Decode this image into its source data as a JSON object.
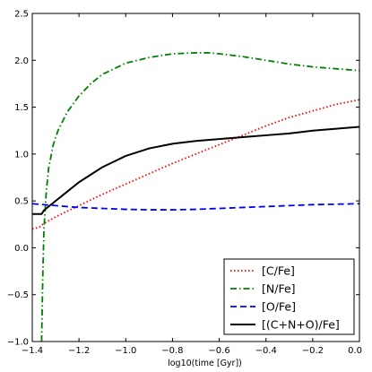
{
  "chart_data": {
    "type": "line",
    "xlabel": "log10(time [Gyr])",
    "ylabel": "",
    "xlim": [
      -1.4,
      0.0
    ],
    "ylim": [
      -1.0,
      2.5
    ],
    "xticks": [
      -1.4,
      -1.2,
      -1.0,
      -0.8,
      -0.6,
      -0.4,
      -0.2,
      0.0
    ],
    "xtick_labels": [
      "−1.4",
      "−1.2",
      "−1.0",
      "−0.8",
      "−0.6",
      "−0.4",
      "−0.2",
      "0.0"
    ],
    "yticks": [
      -1.0,
      -0.5,
      0.0,
      0.5,
      1.0,
      1.5,
      2.0,
      2.5
    ],
    "ytick_labels": [
      "−1.0",
      "−0.5",
      "0.0",
      "0.5",
      "1.0",
      "1.5",
      "2.0",
      "2.5"
    ],
    "grid": false,
    "legend_position": "bottom-right",
    "series": [
      {
        "name": "[C/Fe]",
        "color": "#ff0000",
        "style": "dotted",
        "x": [
          -1.4,
          -1.37,
          -1.35,
          -1.3,
          -1.2,
          -1.1,
          -1.0,
          -0.9,
          -0.8,
          -0.7,
          -0.6,
          -0.5,
          -0.4,
          -0.3,
          -0.2,
          -0.1,
          0.0
        ],
        "y": [
          0.2,
          0.22,
          0.26,
          0.33,
          0.45,
          0.57,
          0.68,
          0.79,
          0.9,
          1.0,
          1.1,
          1.2,
          1.3,
          1.39,
          1.46,
          1.53,
          1.58
        ]
      },
      {
        "name": "[N/Fe]",
        "color": "#008000",
        "style": "dashdot",
        "x": [
          -1.36,
          -1.355,
          -1.35,
          -1.34,
          -1.33,
          -1.31,
          -1.29,
          -1.25,
          -1.2,
          -1.15,
          -1.1,
          -1.0,
          -0.9,
          -0.8,
          -0.7,
          -0.65,
          -0.6,
          -0.5,
          -0.4,
          -0.3,
          -0.2,
          -0.1,
          0.0
        ],
        "y": [
          -1.0,
          -0.3,
          0.2,
          0.6,
          0.85,
          1.1,
          1.25,
          1.45,
          1.62,
          1.75,
          1.85,
          1.97,
          2.03,
          2.07,
          2.08,
          2.08,
          2.07,
          2.04,
          2.0,
          1.96,
          1.93,
          1.91,
          1.89
        ]
      },
      {
        "name": "[O/Fe]",
        "color": "#0000ff",
        "style": "dashed",
        "x": [
          -1.4,
          -1.3,
          -1.2,
          -1.1,
          -1.0,
          -0.9,
          -0.8,
          -0.7,
          -0.6,
          -0.5,
          -0.4,
          -0.3,
          -0.2,
          -0.1,
          0.0
        ],
        "y": [
          0.47,
          0.45,
          0.43,
          0.42,
          0.41,
          0.405,
          0.405,
          0.41,
          0.42,
          0.43,
          0.44,
          0.45,
          0.46,
          0.465,
          0.47
        ]
      },
      {
        "name": "[(C+N+O)/Fe]",
        "color": "#000000",
        "style": "solid",
        "x": [
          -1.4,
          -1.36,
          -1.35,
          -1.3,
          -1.25,
          -1.2,
          -1.1,
          -1.0,
          -0.9,
          -0.8,
          -0.7,
          -0.6,
          -0.5,
          -0.4,
          -0.3,
          -0.2,
          -0.1,
          0.0
        ],
        "y": [
          0.36,
          0.36,
          0.4,
          0.5,
          0.6,
          0.7,
          0.86,
          0.98,
          1.06,
          1.11,
          1.14,
          1.16,
          1.18,
          1.2,
          1.22,
          1.25,
          1.27,
          1.29
        ]
      }
    ]
  }
}
